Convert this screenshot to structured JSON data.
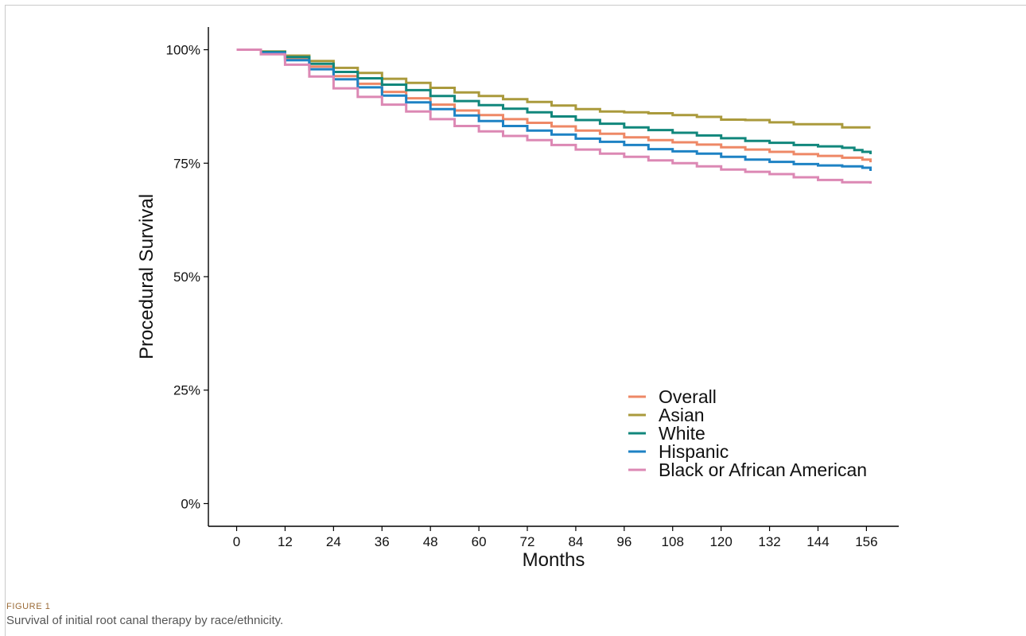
{
  "caption": {
    "label": "FIGURE 1",
    "text": "Survival of initial root canal therapy by race/ethnicity."
  },
  "chart_data": {
    "type": "line",
    "title": "",
    "xlabel": "Months",
    "ylabel": "Procedural Survival",
    "xlim": [
      -7,
      164
    ],
    "ylim": [
      -0.05,
      1.05
    ],
    "x_ticks": [
      0,
      12,
      24,
      36,
      48,
      60,
      72,
      84,
      96,
      108,
      120,
      132,
      144,
      156
    ],
    "y_ticks": [
      0,
      0.25,
      0.5,
      0.75,
      1.0
    ],
    "y_tick_labels": [
      "0%",
      "25%",
      "50%",
      "75%",
      "100%"
    ],
    "grid": false,
    "step": true,
    "legend_position": "bottom-right",
    "series": [
      {
        "name": "Overall",
        "color": "#EE8866",
        "x": [
          0,
          6,
          12,
          18,
          24,
          30,
          36,
          42,
          48,
          54,
          60,
          66,
          72,
          78,
          84,
          90,
          96,
          102,
          108,
          114,
          120,
          126,
          132,
          138,
          144,
          150,
          155,
          157
        ],
        "y": [
          1.0,
          0.994,
          0.981,
          0.963,
          0.942,
          0.925,
          0.907,
          0.893,
          0.879,
          0.866,
          0.856,
          0.847,
          0.839,
          0.831,
          0.822,
          0.815,
          0.807,
          0.801,
          0.796,
          0.791,
          0.785,
          0.78,
          0.775,
          0.77,
          0.766,
          0.762,
          0.758,
          0.752
        ]
      },
      {
        "name": "Asian",
        "color": "#AA9A3C",
        "x": [
          0,
          6,
          12,
          18,
          24,
          30,
          36,
          42,
          48,
          54,
          60,
          66,
          72,
          78,
          84,
          90,
          96,
          102,
          108,
          114,
          120,
          126,
          132,
          138,
          144,
          150,
          157
        ],
        "y": [
          1.0,
          0.996,
          0.987,
          0.975,
          0.96,
          0.949,
          0.936,
          0.927,
          0.916,
          0.906,
          0.898,
          0.891,
          0.885,
          0.877,
          0.869,
          0.864,
          0.862,
          0.86,
          0.856,
          0.852,
          0.846,
          0.845,
          0.84,
          0.836,
          0.836,
          0.829,
          0.829
        ]
      },
      {
        "name": "White",
        "color": "#11877C",
        "x": [
          0,
          6,
          12,
          18,
          24,
          30,
          36,
          42,
          48,
          54,
          60,
          66,
          72,
          78,
          84,
          90,
          96,
          102,
          108,
          114,
          120,
          126,
          132,
          138,
          144,
          150,
          153,
          155,
          157
        ],
        "y": [
          1.0,
          0.995,
          0.984,
          0.969,
          0.951,
          0.937,
          0.923,
          0.911,
          0.898,
          0.887,
          0.878,
          0.87,
          0.862,
          0.853,
          0.845,
          0.837,
          0.829,
          0.823,
          0.817,
          0.811,
          0.805,
          0.799,
          0.795,
          0.79,
          0.787,
          0.784,
          0.779,
          0.775,
          0.77
        ]
      },
      {
        "name": "Hispanic",
        "color": "#1E82C4",
        "x": [
          0,
          6,
          12,
          18,
          24,
          30,
          36,
          42,
          48,
          54,
          60,
          66,
          72,
          78,
          84,
          90,
          96,
          102,
          108,
          114,
          120,
          126,
          132,
          138,
          144,
          150,
          155,
          157
        ],
        "y": [
          1.0,
          0.993,
          0.977,
          0.957,
          0.935,
          0.917,
          0.899,
          0.884,
          0.869,
          0.855,
          0.843,
          0.832,
          0.822,
          0.813,
          0.804,
          0.797,
          0.79,
          0.781,
          0.776,
          0.771,
          0.764,
          0.758,
          0.753,
          0.748,
          0.745,
          0.743,
          0.74,
          0.733
        ]
      },
      {
        "name": "Black or African American",
        "color": "#DC88B4",
        "x": [
          0,
          6,
          12,
          18,
          24,
          30,
          36,
          42,
          48,
          54,
          60,
          66,
          72,
          78,
          84,
          90,
          96,
          102,
          108,
          114,
          120,
          126,
          132,
          138,
          144,
          150,
          157
        ],
        "y": [
          1.0,
          0.99,
          0.967,
          0.941,
          0.915,
          0.896,
          0.879,
          0.864,
          0.847,
          0.832,
          0.82,
          0.81,
          0.801,
          0.79,
          0.78,
          0.771,
          0.764,
          0.756,
          0.75,
          0.743,
          0.736,
          0.731,
          0.726,
          0.719,
          0.713,
          0.708,
          0.705
        ]
      }
    ]
  }
}
